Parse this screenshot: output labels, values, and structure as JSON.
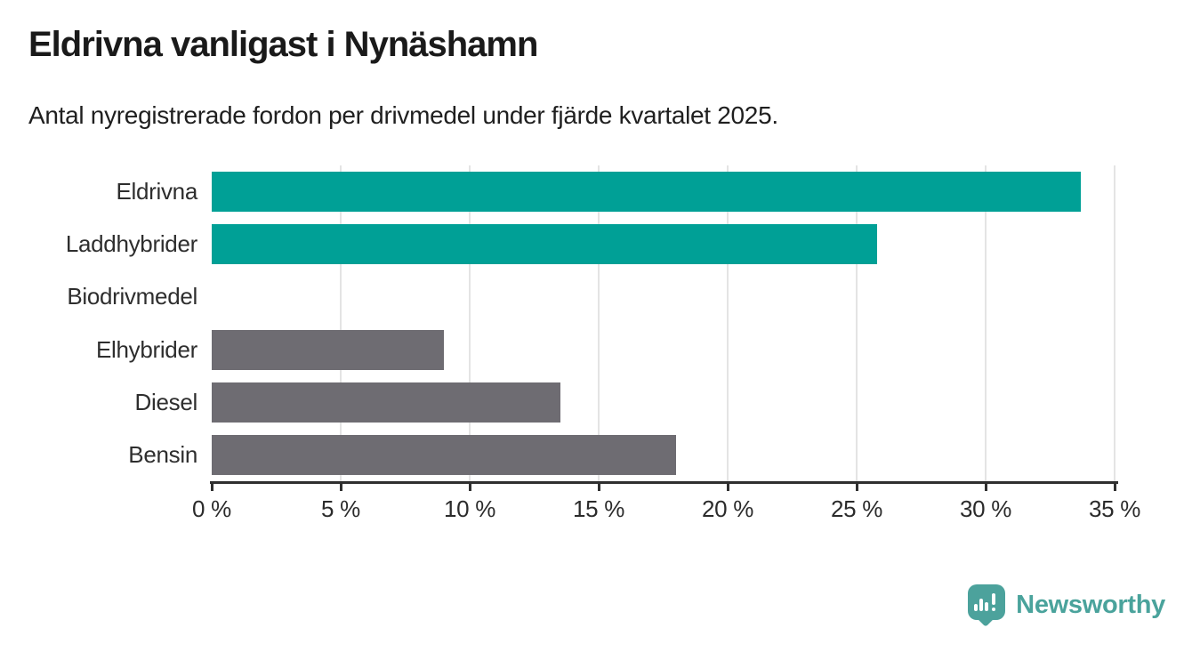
{
  "header": {
    "title": "Eldrivna vanligast i Nynäshamn",
    "subtitle": "Antal nyregistrerade fordon per drivmedel under fjärde kvartalet 2025."
  },
  "chart_data": {
    "type": "bar",
    "orientation": "horizontal",
    "title": "Eldrivna vanligast i Nynäshamn",
    "subtitle": "Antal nyregistrerade fordon per drivmedel under fjärde kvartalet 2025.",
    "categories": [
      "Eldrivna",
      "Laddhybrider",
      "Biodrivmedel",
      "Elhybrider",
      "Diesel",
      "Bensin"
    ],
    "values": [
      33.7,
      25.8,
      0,
      9,
      13.5,
      18
    ],
    "unit": "%",
    "xlabel": "",
    "ylabel": "",
    "xlim": [
      0,
      35
    ],
    "x_ticks": [
      0,
      5,
      10,
      15,
      20,
      25,
      30,
      35
    ],
    "x_tick_labels": [
      "0 %",
      "5 %",
      "10 %",
      "15 %",
      "20 %",
      "25 %",
      "30 %",
      "35 %"
    ],
    "grid": "vertical-only",
    "legend": "none",
    "bar_colors": [
      "#00a096",
      "#00a096",
      "#6e6c72",
      "#6e6c72",
      "#6e6c72",
      "#6e6c72"
    ],
    "highlight_color": "#00a096",
    "default_color": "#6e6c72",
    "gridline_color": "#e4e4e4",
    "axis_color": "#2f2f2f"
  },
  "footer": {
    "brand": "Newsworthy",
    "brand_color": "#4aa39c"
  }
}
